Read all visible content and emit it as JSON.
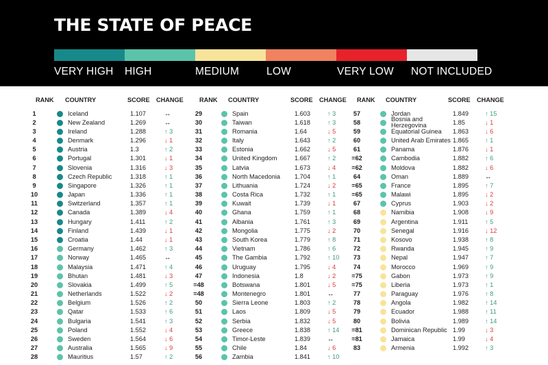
{
  "header": {
    "title": "THE STATE OF PEACE",
    "legend": [
      {
        "label": "VERY HIGH",
        "color": "#17898a"
      },
      {
        "label": "HIGH",
        "color": "#5cc3ab"
      },
      {
        "label": "MEDIUM",
        "color": "#f8e39a"
      },
      {
        "label": "LOW",
        "color": "#f0825f"
      },
      {
        "label": "VERY LOW",
        "color": "#e8222a"
      },
      {
        "label": "NOT INCLUDED",
        "color": "#e6e6e6"
      }
    ]
  },
  "columns": {
    "rank": "RANK",
    "country": "COUNTRY",
    "score": "SCORE",
    "change": "CHANGE"
  },
  "level_colors": {
    "very_high": "#17898a",
    "high": "#5cc3ab",
    "medium": "#f8e39a"
  },
  "table_columns": [
    [
      {
        "rank": "1",
        "country": "Iceland",
        "score": "1.107",
        "change": "↔",
        "dir": "flat",
        "level": "very_high"
      },
      {
        "rank": "2",
        "country": "New Zealand",
        "score": "1.269",
        "change": "↔",
        "dir": "flat",
        "level": "very_high"
      },
      {
        "rank": "3",
        "country": "Ireland",
        "score": "1.288",
        "change": "↑ 3",
        "dir": "up",
        "level": "very_high"
      },
      {
        "rank": "4",
        "country": "Denmark",
        "score": "1.296",
        "change": "↓ 1",
        "dir": "down",
        "level": "very_high"
      },
      {
        "rank": "5",
        "country": "Austria",
        "score": "1.3",
        "change": "↑ 2",
        "dir": "up",
        "level": "very_high"
      },
      {
        "rank": "6",
        "country": "Portugal",
        "score": "1.301",
        "change": "↓ 1",
        "dir": "down",
        "level": "very_high"
      },
      {
        "rank": "7",
        "country": "Slovenia",
        "score": "1.316",
        "change": "↓ 3",
        "dir": "down",
        "level": "very_high"
      },
      {
        "rank": "8",
        "country": "Czech Republic",
        "score": "1.318",
        "change": "↑ 1",
        "dir": "up",
        "level": "very_high"
      },
      {
        "rank": "9",
        "country": "Singapore",
        "score": "1.326",
        "change": "↑ 1",
        "dir": "up",
        "level": "very_high"
      },
      {
        "rank": "10",
        "country": "Japan",
        "score": "1.336",
        "change": "↑ 1",
        "dir": "up",
        "level": "very_high"
      },
      {
        "rank": "11",
        "country": "Switzerland",
        "score": "1.357",
        "change": "↑ 1",
        "dir": "up",
        "level": "very_high"
      },
      {
        "rank": "12",
        "country": "Canada",
        "score": "1.389",
        "change": "↓ 4",
        "dir": "down",
        "level": "very_high"
      },
      {
        "rank": "13",
        "country": "Hungary",
        "score": "1.411",
        "change": "↑ 2",
        "dir": "up",
        "level": "very_high"
      },
      {
        "rank": "14",
        "country": "Finland",
        "score": "1.439",
        "change": "↓ 1",
        "dir": "down",
        "level": "very_high"
      },
      {
        "rank": "15",
        "country": "Croatia",
        "score": "1.44",
        "change": "↓ 1",
        "dir": "down",
        "level": "very_high"
      },
      {
        "rank": "16",
        "country": "Germany",
        "score": "1.462",
        "change": "↑ 3",
        "dir": "up",
        "level": "high"
      },
      {
        "rank": "17",
        "country": "Norway",
        "score": "1.465",
        "change": "↔",
        "dir": "flat",
        "level": "high"
      },
      {
        "rank": "18",
        "country": "Malaysia",
        "score": "1.471",
        "change": "↑ 4",
        "dir": "up",
        "level": "high"
      },
      {
        "rank": "19",
        "country": "Bhutan",
        "score": "1.481",
        "change": "↓ 3",
        "dir": "down",
        "level": "high"
      },
      {
        "rank": "20",
        "country": "Slovakia",
        "score": "1.499",
        "change": "↑ 5",
        "dir": "up",
        "level": "high"
      },
      {
        "rank": "21",
        "country": "Netherlands",
        "score": "1.522",
        "change": "↓ 2",
        "dir": "down",
        "level": "high"
      },
      {
        "rank": "22",
        "country": "Belgium",
        "score": "1.526",
        "change": "↑ 2",
        "dir": "up",
        "level": "high"
      },
      {
        "rank": "23",
        "country": "Qatar",
        "score": "1.533",
        "change": "↑ 6",
        "dir": "up",
        "level": "high"
      },
      {
        "rank": "24",
        "country": "Bulgaria",
        "score": "1.541",
        "change": "↑ 3",
        "dir": "up",
        "level": "high"
      },
      {
        "rank": "25",
        "country": "Poland",
        "score": "1.552",
        "change": "↓ 4",
        "dir": "down",
        "level": "high"
      },
      {
        "rank": "26",
        "country": "Sweden",
        "score": "1.564",
        "change": "↓ 6",
        "dir": "down",
        "level": "high"
      },
      {
        "rank": "27",
        "country": "Australia",
        "score": "1.565",
        "change": "↓ 9",
        "dir": "down",
        "level": "high"
      },
      {
        "rank": "28",
        "country": "Mauritius",
        "score": "1.57",
        "change": "↑ 2",
        "dir": "up",
        "level": "high"
      }
    ],
    [
      {
        "rank": "29",
        "country": "Spain",
        "score": "1.603",
        "change": "↑ 3",
        "dir": "up",
        "level": "high"
      },
      {
        "rank": "30",
        "country": "Taiwan",
        "score": "1.618",
        "change": "↑ 3",
        "dir": "up",
        "level": "high"
      },
      {
        "rank": "31",
        "country": "Romania",
        "score": "1.64",
        "change": "↓ 5",
        "dir": "down",
        "level": "high"
      },
      {
        "rank": "32",
        "country": "Italy",
        "score": "1.643",
        "change": "↑ 2",
        "dir": "up",
        "level": "high"
      },
      {
        "rank": "33",
        "country": "Estonia",
        "score": "1.662",
        "change": "↓ 5",
        "dir": "down",
        "level": "high"
      },
      {
        "rank": "34",
        "country": "United Kingdom",
        "score": "1.667",
        "change": "↑ 2",
        "dir": "up",
        "level": "high"
      },
      {
        "rank": "35",
        "country": "Latvia",
        "score": "1.673",
        "change": "↓ 4",
        "dir": "down",
        "level": "high"
      },
      {
        "rank": "36",
        "country": "North Macedonia",
        "score": "1.704",
        "change": "↑ 1",
        "dir": "up",
        "level": "high"
      },
      {
        "rank": "37",
        "country": "Lithuania",
        "score": "1.724",
        "change": "↓ 2",
        "dir": "down",
        "level": "high"
      },
      {
        "rank": "38",
        "country": "Costa Rica",
        "score": "1.732",
        "change": "↑ 1",
        "dir": "up",
        "level": "high"
      },
      {
        "rank": "39",
        "country": "Kuwait",
        "score": "1.739",
        "change": "↓ 1",
        "dir": "down",
        "level": "high"
      },
      {
        "rank": "40",
        "country": "Ghana",
        "score": "1.759",
        "change": "↑ 1",
        "dir": "up",
        "level": "high"
      },
      {
        "rank": "41",
        "country": "Albania",
        "score": "1.761",
        "change": "↑ 3",
        "dir": "up",
        "level": "high"
      },
      {
        "rank": "42",
        "country": "Mongolia",
        "score": "1.775",
        "change": "↓ 2",
        "dir": "down",
        "level": "high"
      },
      {
        "rank": "43",
        "country": "South Korea",
        "score": "1.779",
        "change": "↑ 8",
        "dir": "up",
        "level": "high"
      },
      {
        "rank": "44",
        "country": "Vietnam",
        "score": "1.786",
        "change": "↑ 6",
        "dir": "up",
        "level": "high"
      },
      {
        "rank": "45",
        "country": "The Gambia",
        "score": "1.792",
        "change": "↑ 10",
        "dir": "up",
        "level": "high"
      },
      {
        "rank": "46",
        "country": "Uruguay",
        "score": "1.795",
        "change": "↓ 4",
        "dir": "down",
        "level": "high"
      },
      {
        "rank": "47",
        "country": "Indonesia",
        "score": "1.8",
        "change": "↓ 2",
        "dir": "down",
        "level": "high"
      },
      {
        "rank": "=48",
        "country": "Botswana",
        "score": "1.801",
        "change": "↓ 5",
        "dir": "down",
        "level": "high"
      },
      {
        "rank": "=48",
        "country": "Montenegro",
        "score": "1.801",
        "change": "↔",
        "dir": "flat",
        "level": "high"
      },
      {
        "rank": "50",
        "country": "Sierra Leone",
        "score": "1.803",
        "change": "↑ 2",
        "dir": "up",
        "level": "high"
      },
      {
        "rank": "51",
        "country": "Laos",
        "score": "1.809",
        "change": "↓ 5",
        "dir": "down",
        "level": "high"
      },
      {
        "rank": "52",
        "country": "Serbia",
        "score": "1.832",
        "change": "↓ 5",
        "dir": "down",
        "level": "high"
      },
      {
        "rank": "53",
        "country": "Greece",
        "score": "1.838",
        "change": "↑ 14",
        "dir": "up",
        "level": "high"
      },
      {
        "rank": "54",
        "country": "Timor-Leste",
        "score": "1.839",
        "change": "↔",
        "dir": "flat",
        "level": "high"
      },
      {
        "rank": "55",
        "country": "Chile",
        "score": "1.84",
        "change": "↓ 6",
        "dir": "down",
        "level": "high"
      },
      {
        "rank": "56",
        "country": "Zambia",
        "score": "1.841",
        "change": "↑ 10",
        "dir": "up",
        "level": "high"
      }
    ],
    [
      {
        "rank": "57",
        "country": "Jordan",
        "score": "1.849",
        "change": "↑ 15",
        "dir": "up",
        "level": "high"
      },
      {
        "rank": "58",
        "country": "Bosnia and Herzegovina",
        "score": "1.85",
        "change": "↓ 1",
        "dir": "down",
        "level": "high"
      },
      {
        "rank": "59",
        "country": "Equatorial Guinea",
        "score": "1.863",
        "change": "↓ 6",
        "dir": "down",
        "level": "high"
      },
      {
        "rank": "60",
        "country": "United Arab Emirates",
        "score": "1.865",
        "change": "↑ 1",
        "dir": "up",
        "level": "high"
      },
      {
        "rank": "61",
        "country": "Panama",
        "score": "1.876",
        "change": "↓ 1",
        "dir": "down",
        "level": "high"
      },
      {
        "rank": "=62",
        "country": "Cambodia",
        "score": "1.882",
        "change": "↑ 6",
        "dir": "up",
        "level": "high"
      },
      {
        "rank": "=62",
        "country": "Moldova",
        "score": "1.882",
        "change": "↓ 6",
        "dir": "down",
        "level": "high"
      },
      {
        "rank": "64",
        "country": "Oman",
        "score": "1.889",
        "change": "↔",
        "dir": "flat",
        "level": "high"
      },
      {
        "rank": "=65",
        "country": "France",
        "score": "1.895",
        "change": "↑ 7",
        "dir": "up",
        "level": "high"
      },
      {
        "rank": "=65",
        "country": "Malawi",
        "score": "1.895",
        "change": "↓ 2",
        "dir": "down",
        "level": "high"
      },
      {
        "rank": "67",
        "country": "Cyprus",
        "score": "1.903",
        "change": "↓ 2",
        "dir": "down",
        "level": "high"
      },
      {
        "rank": "68",
        "country": "Namibia",
        "score": "1.908",
        "change": "↓ 9",
        "dir": "down",
        "level": "medium"
      },
      {
        "rank": "69",
        "country": "Argentina",
        "score": "1.911",
        "change": "↑ 5",
        "dir": "up",
        "level": "medium"
      },
      {
        "rank": "70",
        "country": "Senegal",
        "score": "1.916",
        "change": "↓ 12",
        "dir": "down",
        "level": "medium"
      },
      {
        "rank": "71",
        "country": "Kosovo",
        "score": "1.938",
        "change": "↑ 8",
        "dir": "up",
        "level": "medium"
      },
      {
        "rank": "72",
        "country": "Rwanda",
        "score": "1.945",
        "change": "↑ 9",
        "dir": "up",
        "level": "medium"
      },
      {
        "rank": "73",
        "country": "Nepal",
        "score": "1.947",
        "change": "↑ 7",
        "dir": "up",
        "level": "medium"
      },
      {
        "rank": "74",
        "country": "Morocco",
        "score": "1.969",
        "change": "↑ 9",
        "dir": "up",
        "level": "medium"
      },
      {
        "rank": "=75",
        "country": "Gabon",
        "score": "1.973",
        "change": "↑ 9",
        "dir": "up",
        "level": "medium"
      },
      {
        "rank": "=75",
        "country": "Liberia",
        "score": "1.973",
        "change": "↑ 1",
        "dir": "up",
        "level": "medium"
      },
      {
        "rank": "77",
        "country": "Paraguay",
        "score": "1.976",
        "change": "↑ 8",
        "dir": "up",
        "level": "medium"
      },
      {
        "rank": "78",
        "country": "Angola",
        "score": "1.982",
        "change": "↑ 14",
        "dir": "up",
        "level": "medium"
      },
      {
        "rank": "79",
        "country": "Ecuador",
        "score": "1.988",
        "change": "↑ 11",
        "dir": "up",
        "level": "medium"
      },
      {
        "rank": "80",
        "country": "Bolivia",
        "score": "1.989",
        "change": "↑ 14",
        "dir": "up",
        "level": "medium"
      },
      {
        "rank": "=81",
        "country": "Dominican Republic",
        "score": "1.99",
        "change": "↓ 3",
        "dir": "down",
        "level": "medium"
      },
      {
        "rank": "=81",
        "country": "Jamaica",
        "score": "1.99",
        "change": "↓ 4",
        "dir": "down",
        "level": "medium"
      },
      {
        "rank": "83",
        "country": "Armenia",
        "score": "1.992",
        "change": "↑ 3",
        "dir": "up",
        "level": "medium"
      }
    ]
  ]
}
